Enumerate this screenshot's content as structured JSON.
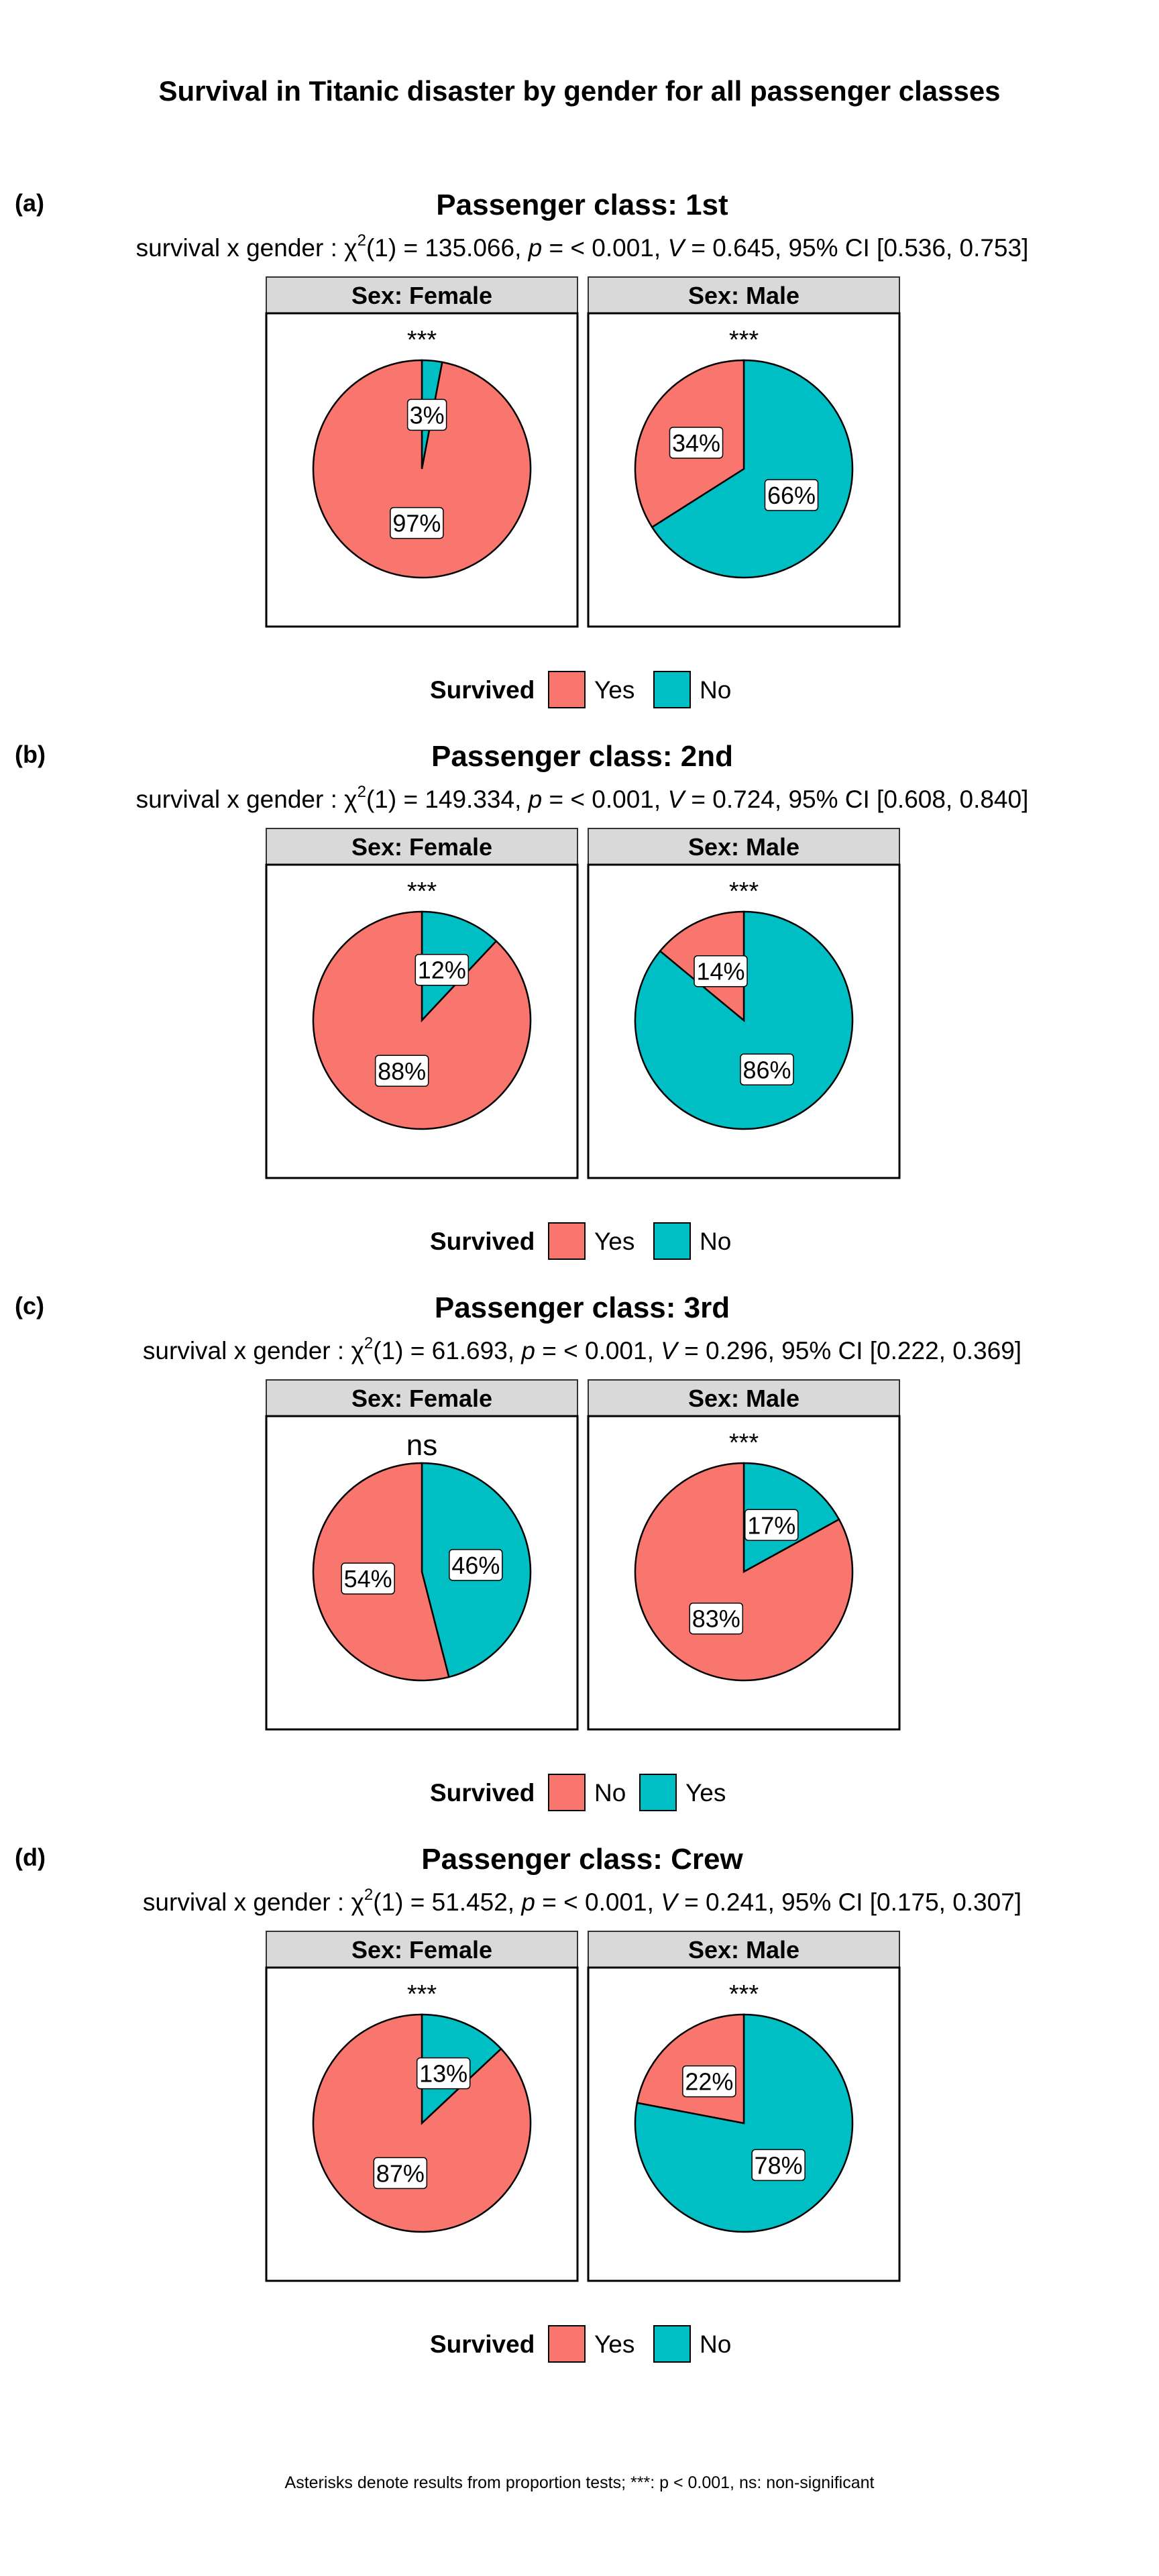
{
  "title": "Survival in Titanic disaster by gender for all passenger classes",
  "caption": "Asterisks denote results from proportion tests; ***: p < 0.001, ns: non-significant",
  "chart_data": [
    {
      "type": "pie",
      "tag": "(a)",
      "title": "Passenger class: 1st",
      "subtitle": {
        "prefix": "survival x gender : ",
        "chi": "χ",
        "sup": "2",
        "df": "(1) = 135.066, ",
        "p_sym": "p",
        "p_val": " = < 0.001, ",
        "v_sym": "V",
        "v_val": " = 0.645, 95% CI [0.536, 0.753]"
      },
      "legend": {
        "title": "Survived",
        "labels": [
          "Yes",
          "No"
        ],
        "colors": [
          "#F8766D",
          "#00BFC4"
        ]
      },
      "panels": [
        {
          "strip": "Sex: Female",
          "sig": "***",
          "slices": [
            {
              "value": 97,
              "label": "97%"
            },
            {
              "value": 3,
              "label": "3%"
            }
          ]
        },
        {
          "strip": "Sex: Male",
          "sig": "***",
          "slices": [
            {
              "value": 34,
              "label": "34%"
            },
            {
              "value": 66,
              "label": "66%"
            }
          ]
        }
      ]
    },
    {
      "type": "pie",
      "tag": "(b)",
      "title": "Passenger class: 2nd",
      "subtitle": {
        "prefix": "survival x gender : ",
        "chi": "χ",
        "sup": "2",
        "df": "(1) = 149.334, ",
        "p_sym": "p",
        "p_val": " = < 0.001, ",
        "v_sym": "V",
        "v_val": " = 0.724, 95% CI [0.608, 0.840]"
      },
      "legend": {
        "title": "Survived",
        "labels": [
          "Yes",
          "No"
        ],
        "colors": [
          "#F8766D",
          "#00BFC4"
        ]
      },
      "panels": [
        {
          "strip": "Sex: Female",
          "sig": "***",
          "slices": [
            {
              "value": 88,
              "label": "88%"
            },
            {
              "value": 12,
              "label": "12%"
            }
          ]
        },
        {
          "strip": "Sex: Male",
          "sig": "***",
          "slices": [
            {
              "value": 14,
              "label": "14%"
            },
            {
              "value": 86,
              "label": "86%"
            }
          ]
        }
      ]
    },
    {
      "type": "pie",
      "tag": "(c)",
      "title": "Passenger class: 3rd",
      "subtitle": {
        "prefix": "survival x gender : ",
        "chi": "χ",
        "sup": "2",
        "df": "(1) = 61.693, ",
        "p_sym": "p",
        "p_val": " = < 0.001, ",
        "v_sym": "V",
        "v_val": " = 0.296, 95% CI [0.222, 0.369]"
      },
      "legend": {
        "title": "Survived",
        "labels": [
          "No",
          "Yes"
        ],
        "colors": [
          "#F8766D",
          "#00BFC4"
        ]
      },
      "panels": [
        {
          "strip": "Sex: Female",
          "sig": "ns",
          "slices": [
            {
              "value": 54,
              "label": "54%"
            },
            {
              "value": 46,
              "label": "46%"
            }
          ]
        },
        {
          "strip": "Sex: Male",
          "sig": "***",
          "slices": [
            {
              "value": 83,
              "label": "83%"
            },
            {
              "value": 17,
              "label": "17%"
            }
          ]
        }
      ]
    },
    {
      "type": "pie",
      "tag": "(d)",
      "title": "Passenger class: Crew",
      "subtitle": {
        "prefix": "survival x gender : ",
        "chi": "χ",
        "sup": "2",
        "df": "(1) = 51.452, ",
        "p_sym": "p",
        "p_val": " = < 0.001, ",
        "v_sym": "V",
        "v_val": " = 0.241, 95% CI [0.175, 0.307]"
      },
      "legend": {
        "title": "Survived",
        "labels": [
          "Yes",
          "No"
        ],
        "colors": [
          "#F8766D",
          "#00BFC4"
        ]
      },
      "panels": [
        {
          "strip": "Sex: Female",
          "sig": "***",
          "slices": [
            {
              "value": 87,
              "label": "87%"
            },
            {
              "value": 13,
              "label": "13%"
            }
          ]
        },
        {
          "strip": "Sex: Male",
          "sig": "***",
          "slices": [
            {
              "value": 22,
              "label": "22%"
            },
            {
              "value": 78,
              "label": "78%"
            }
          ]
        }
      ]
    }
  ]
}
